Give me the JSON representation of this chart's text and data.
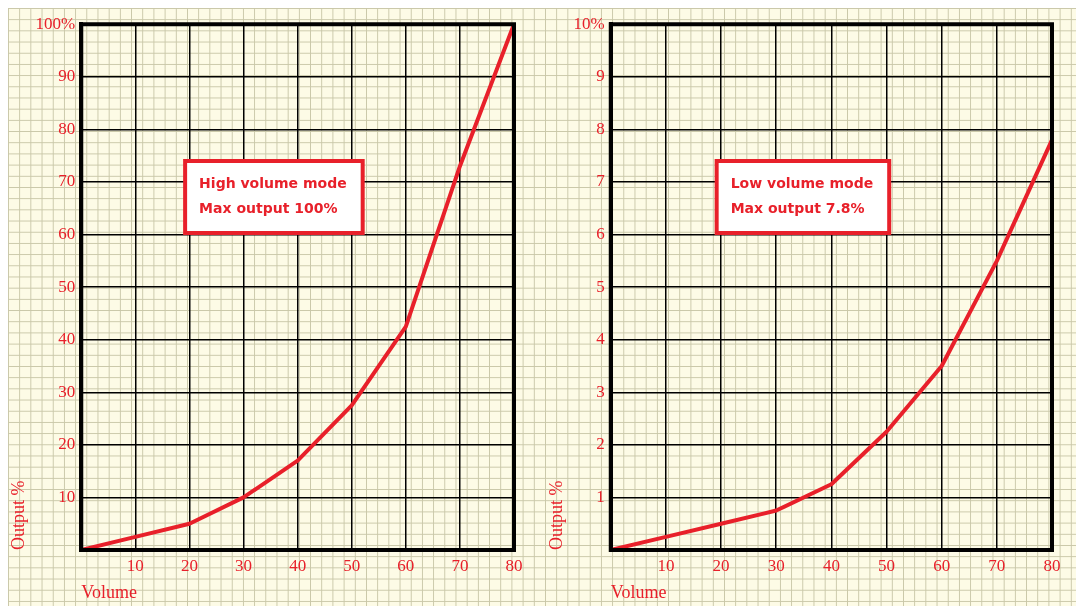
{
  "chart_data": [
    {
      "type": "line",
      "xlabel": "Volume",
      "ylabel": "Output %",
      "x": [
        0,
        10,
        20,
        30,
        40,
        50,
        60,
        70,
        80
      ],
      "series": [
        {
          "color": "#e8202a",
          "values": [
            0,
            2.5,
            5,
            10,
            17,
            27.5,
            42.5,
            73,
            100
          ]
        }
      ],
      "xlim": [
        0,
        80
      ],
      "xticks": [
        {
          "value": 0,
          "label": null
        },
        10,
        20,
        30,
        40,
        50,
        60,
        70,
        80
      ],
      "ylim": [
        0,
        100
      ],
      "yticks": [
        {
          "value": 0,
          "label": null
        },
        10,
        20,
        30,
        40,
        50,
        60,
        70,
        80,
        90,
        {
          "value": 100,
          "label": "100%"
        }
      ],
      "grid": true,
      "legend": false,
      "marker": "none",
      "line_style": "solid",
      "annotations": [
        "High volume mode",
        "Max output 100%"
      ]
    },
    {
      "type": "line",
      "xlabel": "Volume",
      "ylabel": "Output %",
      "x": [
        0,
        10,
        20,
        30,
        40,
        50,
        60,
        70,
        80
      ],
      "series": [
        {
          "color": "#e8202a",
          "values": [
            0,
            0.25,
            0.5,
            0.75,
            1.25,
            2.25,
            3.5,
            5.5,
            7.8
          ]
        }
      ],
      "xlim": [
        0,
        80
      ],
      "xticks": [
        {
          "value": 0,
          "label": null
        },
        10,
        20,
        30,
        40,
        50,
        60,
        70,
        80
      ],
      "ylim": [
        0,
        10
      ],
      "yticks": [
        {
          "value": 0,
          "label": null
        },
        1,
        2,
        3,
        4,
        5,
        6,
        7,
        8,
        9,
        {
          "value": 10,
          "label": "10%"
        }
      ],
      "grid": true,
      "legend": false,
      "marker": "none",
      "line_style": "solid",
      "annotations": [
        "Low volume mode",
        "Max output 7.8%"
      ]
    }
  ]
}
